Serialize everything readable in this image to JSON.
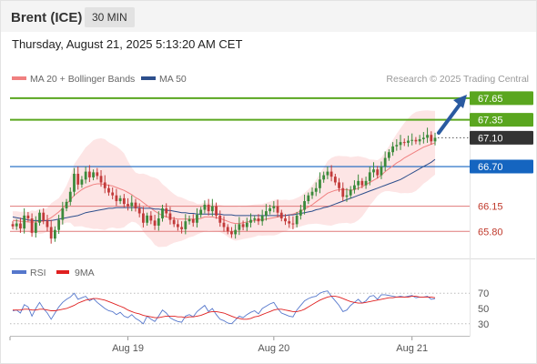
{
  "header": {
    "instrument": "Brent (ICE)",
    "timeframe": "30 MIN",
    "timestamp": "Thursday, August 21, 2025 5:13:20 AM CET"
  },
  "legend": {
    "ma20_bb": "MA 20 + Bollinger Bands",
    "ma50": "MA 50",
    "credit": "Research © 2025 Trading Central",
    "rsi": "RSI",
    "ma9": "9MA"
  },
  "colors": {
    "ma20": "#f08080",
    "ma50": "#2d4f8c",
    "bollinger": "#fde0e0",
    "resistance": "#5aa61f",
    "support": "#e07a7a",
    "pivot": "#1565c0",
    "rsi": "#5577cc",
    "rsi_ma": "#e02020",
    "candle_up": "#3b8a3b",
    "candle_down": "#c23a3a",
    "arrow": "#2a5aa0"
  },
  "chart_data": {
    "type": "line",
    "x_tick_labels": [
      "Aug 19",
      "Aug 20",
      "Aug 21"
    ],
    "ylim": [
      65.5,
      67.8
    ],
    "rsi_ylim": [
      25,
      75
    ],
    "rsi_ticks": [
      "70",
      "50",
      "30"
    ],
    "current_price": "67.10",
    "levels": [
      {
        "label": "67.65",
        "value": 67.65,
        "kind": "resistance"
      },
      {
        "label": "67.35",
        "value": 67.35,
        "kind": "resistance"
      },
      {
        "label": "66.70",
        "value": 66.7,
        "kind": "pivot"
      },
      {
        "label": "66.15",
        "value": 66.15,
        "kind": "support"
      },
      {
        "label": "65.80",
        "value": 65.8,
        "kind": "support"
      }
    ],
    "close": [
      65.87,
      65.91,
      65.84,
      66.02,
      65.98,
      65.78,
      65.92,
      66.06,
      65.95,
      65.86,
      65.7,
      65.82,
      65.96,
      66.12,
      66.21,
      66.35,
      66.6,
      66.45,
      66.52,
      66.63,
      66.55,
      66.62,
      66.57,
      66.48,
      66.4,
      66.34,
      66.3,
      66.22,
      66.26,
      66.18,
      66.15,
      66.2,
      66.12,
      66.05,
      65.92,
      66.02,
      65.95,
      65.88,
      65.98,
      66.12,
      66.05,
      65.96,
      65.9,
      65.86,
      65.83,
      65.94,
      65.97,
      65.92,
      66.03,
      66.1,
      66.17,
      66.08,
      66.15,
      66.02,
      65.92,
      65.86,
      65.8,
      65.76,
      65.82,
      65.9,
      65.86,
      65.92,
      65.96,
      65.98,
      65.94,
      66.02,
      66.08,
      66.12,
      66.15,
      66.06,
      65.98,
      65.94,
      65.91,
      65.9,
      66.02,
      66.1,
      66.22,
      66.3,
      66.35,
      66.4,
      66.52,
      66.58,
      66.63,
      66.56,
      66.48,
      66.4,
      66.28,
      66.3,
      66.38,
      66.44,
      66.5,
      66.44,
      66.5,
      66.62,
      66.66,
      66.58,
      66.7,
      66.82,
      66.9,
      66.98,
      67.0,
      67.04,
      67.03,
      67.06,
      67.07,
      67.05,
      67.08,
      67.1,
      67.14,
      67.05,
      67.1
    ],
    "ma20": [
      65.95,
      65.95,
      65.94,
      65.94,
      65.93,
      65.93,
      65.93,
      65.94,
      65.94,
      65.96,
      65.99,
      66.03,
      66.07,
      66.12,
      66.18,
      66.24,
      66.3,
      66.34,
      66.38,
      66.41,
      66.43,
      66.45,
      66.46,
      66.46,
      66.45,
      66.44,
      66.43,
      66.41,
      66.39,
      66.37,
      66.34,
      66.31,
      66.27,
      66.24,
      66.2,
      66.16,
      66.12,
      66.08,
      66.05,
      66.02,
      66.0,
      65.99,
      65.98,
      65.97,
      65.97,
      65.97,
      65.97,
      65.97,
      65.97,
      65.98,
      66.0,
      66.0,
      66.0,
      65.99,
      65.98,
      65.96,
      65.94,
      65.92,
      65.91,
      65.91,
      65.92,
      65.93,
      65.94,
      65.95,
      65.96,
      65.96,
      65.97,
      65.98,
      65.99,
      66.0,
      66.01,
      66.02,
      66.03,
      66.04,
      66.06,
      66.08,
      66.11,
      66.14,
      66.17,
      66.21,
      66.25,
      66.29,
      66.33,
      66.35,
      66.37,
      66.38,
      66.38,
      66.38,
      66.37,
      66.38,
      66.4,
      66.42,
      66.45,
      66.48,
      66.51,
      66.54,
      66.58,
      66.63,
      66.67,
      66.71,
      66.75,
      66.78,
      66.82,
      66.85,
      66.88,
      66.91,
      66.94,
      66.97,
      66.99,
      67.01,
      67.03
    ],
    "ma50": [
      66.0,
      65.99,
      65.98,
      65.97,
      65.96,
      65.95,
      65.95,
      65.95,
      65.95,
      65.95,
      65.95,
      65.96,
      65.97,
      65.98,
      65.99,
      66.0,
      66.01,
      66.02,
      66.04,
      66.06,
      66.07,
      66.08,
      66.09,
      66.1,
      66.11,
      66.12,
      66.12,
      66.13,
      66.13,
      66.13,
      66.13,
      66.13,
      66.13,
      66.13,
      66.12,
      66.12,
      66.12,
      66.11,
      66.11,
      66.1,
      66.09,
      66.09,
      66.08,
      66.07,
      66.06,
      66.06,
      66.05,
      66.05,
      66.04,
      66.04,
      66.04,
      66.04,
      66.04,
      66.04,
      66.04,
      66.03,
      66.03,
      66.03,
      66.02,
      66.02,
      66.02,
      66.02,
      66.02,
      66.02,
      66.02,
      66.02,
      66.02,
      66.02,
      66.02,
      66.02,
      66.02,
      66.02,
      66.03,
      66.03,
      66.04,
      66.05,
      66.06,
      66.07,
      66.08,
      66.1,
      66.11,
      66.13,
      66.14,
      66.16,
      66.18,
      66.2,
      66.22,
      66.24,
      66.26,
      66.28,
      66.3,
      66.32,
      66.34,
      66.36,
      66.38,
      66.4,
      66.42,
      66.44,
      66.46,
      66.48,
      66.5,
      66.52,
      66.55,
      66.58,
      66.61,
      66.64,
      66.67,
      66.7,
      66.73,
      66.76,
      66.8
    ],
    "rsi": [
      47,
      48,
      44,
      55,
      52,
      40,
      50,
      58,
      50,
      44,
      36,
      44,
      52,
      58,
      62,
      65,
      70,
      62,
      64,
      66,
      60,
      63,
      58,
      54,
      50,
      47,
      46,
      42,
      45,
      40,
      38,
      42,
      37,
      34,
      30,
      40,
      36,
      33,
      40,
      48,
      44,
      38,
      35,
      33,
      32,
      40,
      42,
      39,
      46,
      50,
      54,
      46,
      50,
      42,
      36,
      34,
      31,
      30,
      35,
      40,
      38,
      42,
      45,
      47,
      43,
      50,
      53,
      56,
      58,
      50,
      44,
      42,
      40,
      39,
      48,
      54,
      60,
      63,
      65,
      66,
      70,
      72,
      73,
      66,
      60,
      54,
      46,
      48,
      54,
      58,
      62,
      57,
      60,
      66,
      67,
      62,
      68,
      68,
      67,
      66,
      65,
      66,
      65,
      66,
      67,
      64,
      65,
      65,
      66,
      62,
      63
    ],
    "rsi_ma": [
      48,
      48,
      48,
      49,
      49,
      48,
      48,
      49,
      49,
      48,
      47,
      47,
      48,
      49,
      50,
      52,
      54,
      57,
      59,
      61,
      62,
      63,
      63,
      62,
      61,
      59,
      57,
      55,
      53,
      51,
      48,
      46,
      44,
      43,
      41,
      40,
      39,
      38,
      38,
      39,
      40,
      40,
      40,
      39,
      39,
      38,
      39,
      39,
      40,
      41,
      43,
      45,
      46,
      46,
      45,
      44,
      42,
      40,
      38,
      37,
      36,
      36,
      37,
      39,
      40,
      42,
      44,
      46,
      48,
      49,
      49,
      48,
      47,
      46,
      46,
      47,
      49,
      52,
      55,
      58,
      61,
      63,
      65,
      66,
      66,
      65,
      63,
      61,
      59,
      58,
      57,
      57,
      58,
      59,
      60,
      61,
      62,
      63,
      64,
      64,
      65,
      65,
      65,
      65,
      66,
      66,
      65,
      65,
      65,
      65,
      64
    ]
  }
}
